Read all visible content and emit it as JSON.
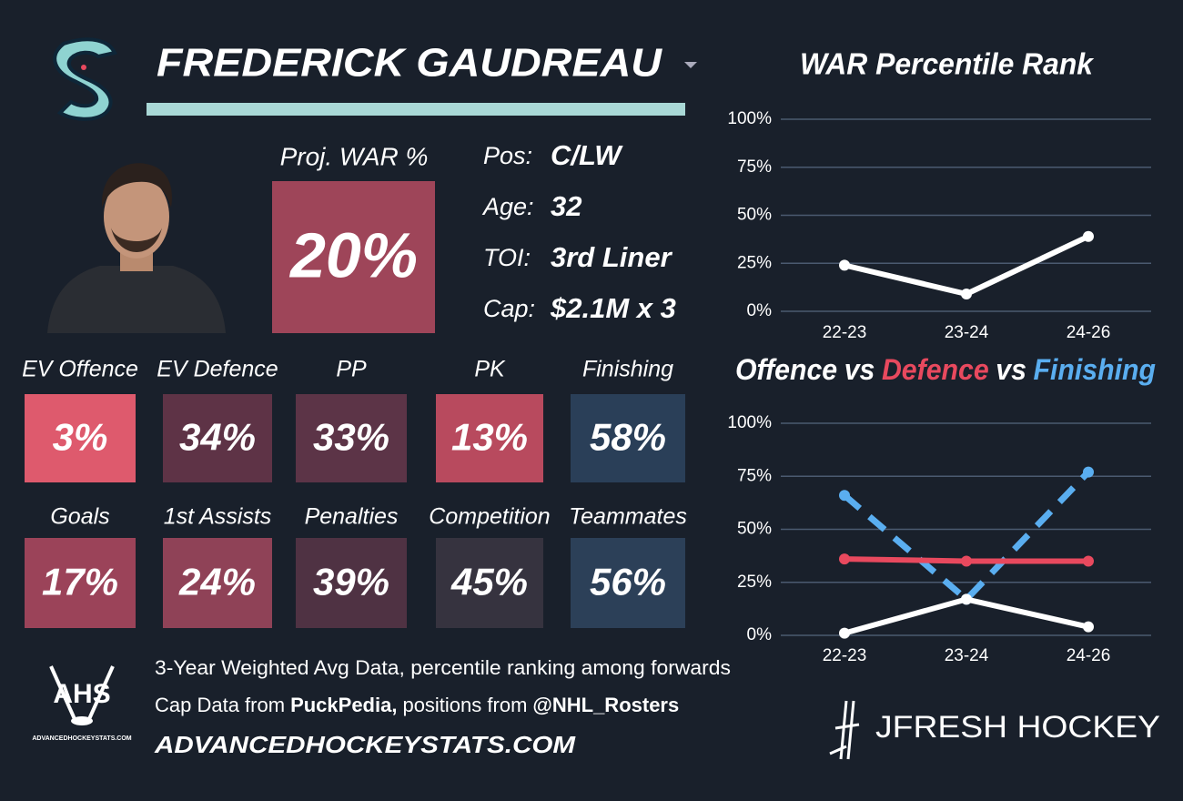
{
  "header": {
    "name": "FREDERICK GAUDREAU"
  },
  "projection": {
    "label": "Proj. WAR %",
    "value": "20%",
    "color": "#9e4559"
  },
  "profile": [
    {
      "label": "Pos:",
      "value": "C/LW"
    },
    {
      "label": "Age:",
      "value": "32"
    },
    {
      "label": "TOI:",
      "value": "3rd Liner"
    },
    {
      "label": "Cap:",
      "value": "$2.1M x 3"
    }
  ],
  "tiles": [
    [
      {
        "label": "EV Offence",
        "value": "3%",
        "color": "#de5a6d"
      },
      {
        "label": "EV Defence",
        "value": "34%",
        "color": "#5e3346"
      },
      {
        "label": "PP",
        "value": "33%",
        "color": "#5c3447"
      },
      {
        "label": "PK",
        "value": "13%",
        "color": "#b84a5e"
      },
      {
        "label": "Finishing",
        "value": "58%",
        "color": "#2a3f58"
      }
    ],
    [
      {
        "label": "Goals",
        "value": "17%",
        "color": "#9b4359"
      },
      {
        "label": "1st Assists",
        "value": "24%",
        "color": "#8f4257"
      },
      {
        "label": "Penalties",
        "value": "39%",
        "color": "#4f3243"
      },
      {
        "label": "Competition",
        "value": "45%",
        "color": "#36333f"
      },
      {
        "label": "Teammates",
        "value": "56%",
        "color": "#2c4058"
      }
    ]
  ],
  "footer": {
    "note": "3-Year Weighted Avg Data, percentile ranking among forwards",
    "cap_prefix": "Cap Data from",
    "cap_source": "PuckPedia,",
    "positions_prefix": "positions from",
    "positions_source": "@NHL_Rosters",
    "website": "ADVANCEDHOCKEYSTATS.COM"
  },
  "logos": {
    "ahs": "AHS",
    "ahs_site": "ADVANCEDHOCKEYSTATS.COM",
    "brand": "JFRESH HOCKEY"
  },
  "chart_data": [
    {
      "type": "line",
      "title": "WAR Percentile Rank",
      "categories": [
        "22-23",
        "23-24",
        "24-26"
      ],
      "values": [
        24,
        9,
        39
      ],
      "color": "#ffffff",
      "ylim": [
        0,
        100
      ],
      "yticks": [
        {
          "value": 0,
          "label": "0%"
        },
        {
          "value": 25,
          "label": "25%"
        },
        {
          "value": 50,
          "label": "50%"
        },
        {
          "value": 75,
          "label": "75%"
        },
        {
          "value": 100,
          "label": "100%"
        }
      ],
      "grid": true
    },
    {
      "type": "line",
      "title_joiner": "vs",
      "categories": [
        "22-23",
        "23-24",
        "24-26"
      ],
      "series": [
        {
          "name": "Offence",
          "color": "#ffffff",
          "values": [
            1,
            17,
            4
          ]
        },
        {
          "name": "Defence",
          "color": "#e8495e",
          "values": [
            36,
            35,
            35
          ]
        },
        {
          "name": "Finishing",
          "color": "#5aaef0",
          "values": [
            66,
            17,
            77
          ],
          "dashed": true
        }
      ],
      "ylim": [
        0,
        100
      ],
      "yticks": [
        {
          "value": 0,
          "label": "0%"
        },
        {
          "value": 25,
          "label": "25%"
        },
        {
          "value": 50,
          "label": "50%"
        },
        {
          "value": 75,
          "label": "75%"
        },
        {
          "value": 100,
          "label": "100%"
        }
      ],
      "grid": true
    }
  ]
}
